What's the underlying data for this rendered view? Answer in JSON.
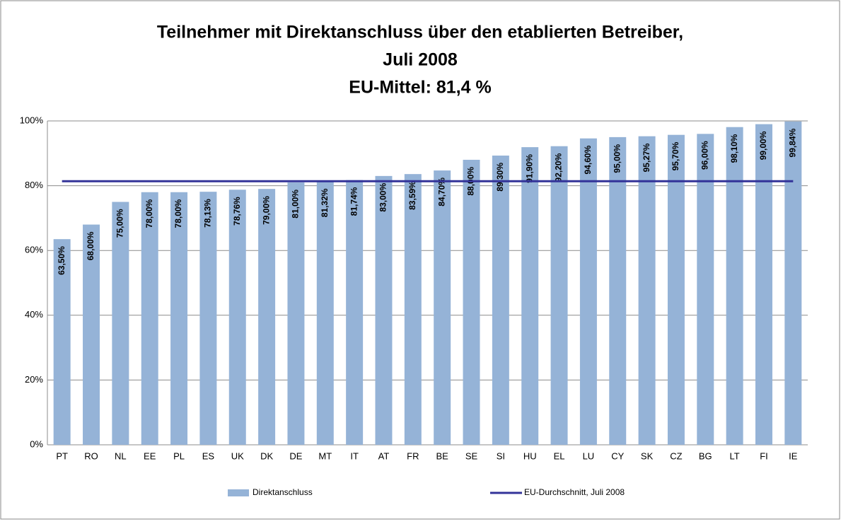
{
  "chart_data": {
    "type": "bar",
    "title": [
      "Teilnehmer mit Direktanschluss über den etablierten Betreiber,",
      "Juli 2008",
      "EU-Mittel: 81,4 %"
    ],
    "categories": [
      "PT",
      "RO",
      "NL",
      "EE",
      "PL",
      "ES",
      "UK",
      "DK",
      "DE",
      "MT",
      "IT",
      "AT",
      "FR",
      "BE",
      "SE",
      "SI",
      "HU",
      "EL",
      "LU",
      "CY",
      "SK",
      "CZ",
      "BG",
      "LT",
      "FI",
      "IE"
    ],
    "series": [
      {
        "name": "Direktanschluss",
        "type": "bar",
        "color": "#95b3d7",
        "values": [
          63.5,
          68,
          75,
          78,
          78,
          78.13,
          78.76,
          79,
          81,
          81.32,
          81.74,
          83,
          83.59,
          84.7,
          88,
          89.3,
          91.9,
          92.2,
          94.6,
          95,
          95.27,
          95.7,
          96,
          98.1,
          99,
          99.84
        ],
        "value_labels": [
          "63,50%",
          "68,00%",
          "75,00%",
          "78,00%",
          "78,00%",
          "78,13%",
          "78,76%",
          "79,00%",
          "81,00%",
          "81,32%",
          "81,74%",
          "83,00%",
          "83,59%",
          "84,70%",
          "88,00%",
          "89,30%",
          "91,90%",
          "92,20%",
          "94,60%",
          "95,00%",
          "95,27%",
          "95,70%",
          "96,00%",
          "98,10%",
          "99,00%",
          "99,84%"
        ]
      },
      {
        "name": "EU-Durchschnitt, Juli 2008",
        "type": "line",
        "color": "#333399",
        "values": [
          81.4,
          81.4,
          81.4,
          81.4,
          81.4,
          81.4,
          81.4,
          81.4,
          81.4,
          81.4,
          81.4,
          81.4,
          81.4,
          81.4,
          81.4,
          81.4,
          81.4,
          81.4,
          81.4,
          81.4,
          81.4,
          81.4,
          81.4,
          81.4,
          81.4,
          81.4
        ]
      }
    ],
    "ylim": [
      0,
      100
    ],
    "yticks": [
      {
        "value": 0,
        "label": "0%"
      },
      {
        "value": 20,
        "label": "20%"
      },
      {
        "value": 40,
        "label": "40%"
      },
      {
        "value": 60,
        "label": "60%"
      },
      {
        "value": 80,
        "label": "80%"
      },
      {
        "value": 100,
        "label": "100%"
      }
    ],
    "grid": true,
    "legend": "bottom"
  }
}
